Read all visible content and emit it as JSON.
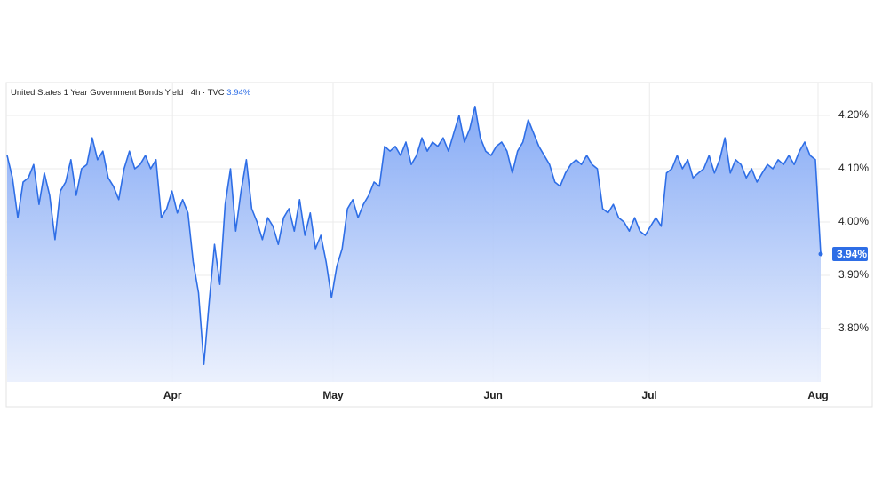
{
  "chart_data": {
    "type": "area",
    "title": "United States 1 Year Government Bonds Yield · 4h · TVC",
    "last_price": {
      "value": 3.94,
      "label": "3.94%"
    },
    "color": "#2e6ee6",
    "values": [
      4.125,
      4.083,
      4.008,
      4.075,
      4.083,
      4.108,
      4.033,
      4.092,
      4.05,
      3.967,
      4.058,
      4.075,
      4.117,
      4.05,
      4.1,
      4.108,
      4.158,
      4.117,
      4.133,
      4.083,
      4.067,
      4.042,
      4.1,
      4.133,
      4.1,
      4.108,
      4.125,
      4.1,
      4.117,
      4.008,
      4.025,
      4.058,
      4.017,
      4.042,
      4.017,
      3.925,
      3.867,
      3.733,
      3.85,
      3.958,
      3.883,
      4.033,
      4.1,
      3.983,
      4.058,
      4.117,
      4.025,
      4.0,
      3.967,
      4.008,
      3.992,
      3.958,
      4.008,
      4.025,
      3.983,
      4.042,
      3.975,
      4.017,
      3.95,
      3.975,
      3.925,
      3.858,
      3.917,
      3.95,
      4.025,
      4.042,
      4.008,
      4.033,
      4.05,
      4.075,
      4.067,
      4.142,
      4.133,
      4.142,
      4.125,
      4.15,
      4.108,
      4.125,
      4.158,
      4.133,
      4.15,
      4.142,
      4.158,
      4.133,
      4.167,
      4.2,
      4.15,
      4.175,
      4.217,
      4.158,
      4.133,
      4.125,
      4.142,
      4.15,
      4.133,
      4.092,
      4.133,
      4.15,
      4.192,
      4.167,
      4.142,
      4.125,
      4.108,
      4.075,
      4.067,
      4.092,
      4.108,
      4.117,
      4.108,
      4.125,
      4.108,
      4.1,
      4.025,
      4.017,
      4.033,
      4.008,
      4.0,
      3.983,
      4.008,
      3.983,
      3.975,
      3.992,
      4.008,
      3.992,
      4.092,
      4.1,
      4.125,
      4.1,
      4.117,
      4.083,
      4.092,
      4.1,
      4.125,
      4.092,
      4.117,
      4.158,
      4.092,
      4.117,
      4.108,
      4.083,
      4.1,
      4.075,
      4.092,
      4.108,
      4.1,
      4.117,
      4.108,
      4.125,
      4.108,
      4.133,
      4.15,
      4.125,
      4.117,
      3.94
    ],
    "xlim": [
      0,
      153
    ],
    "xticks": [
      {
        "value": 31.1,
        "label": "Apr"
      },
      {
        "value": 61.3,
        "label": "May"
      },
      {
        "value": 91.4,
        "label": "Jun"
      },
      {
        "value": 120.8,
        "label": "Jul"
      },
      {
        "value": 152.5,
        "label": "Aug"
      }
    ],
    "ylim": [
      3.7,
      4.26
    ],
    "yticks": [
      {
        "value": 3.8,
        "label": "3.80%"
      },
      {
        "value": 3.9,
        "label": "3.90%"
      },
      {
        "value": 4.0,
        "label": "4.00%"
      },
      {
        "value": 4.1,
        "label": "4.10%"
      },
      {
        "value": 4.2,
        "label": "4.20%"
      }
    ],
    "grid": true
  }
}
